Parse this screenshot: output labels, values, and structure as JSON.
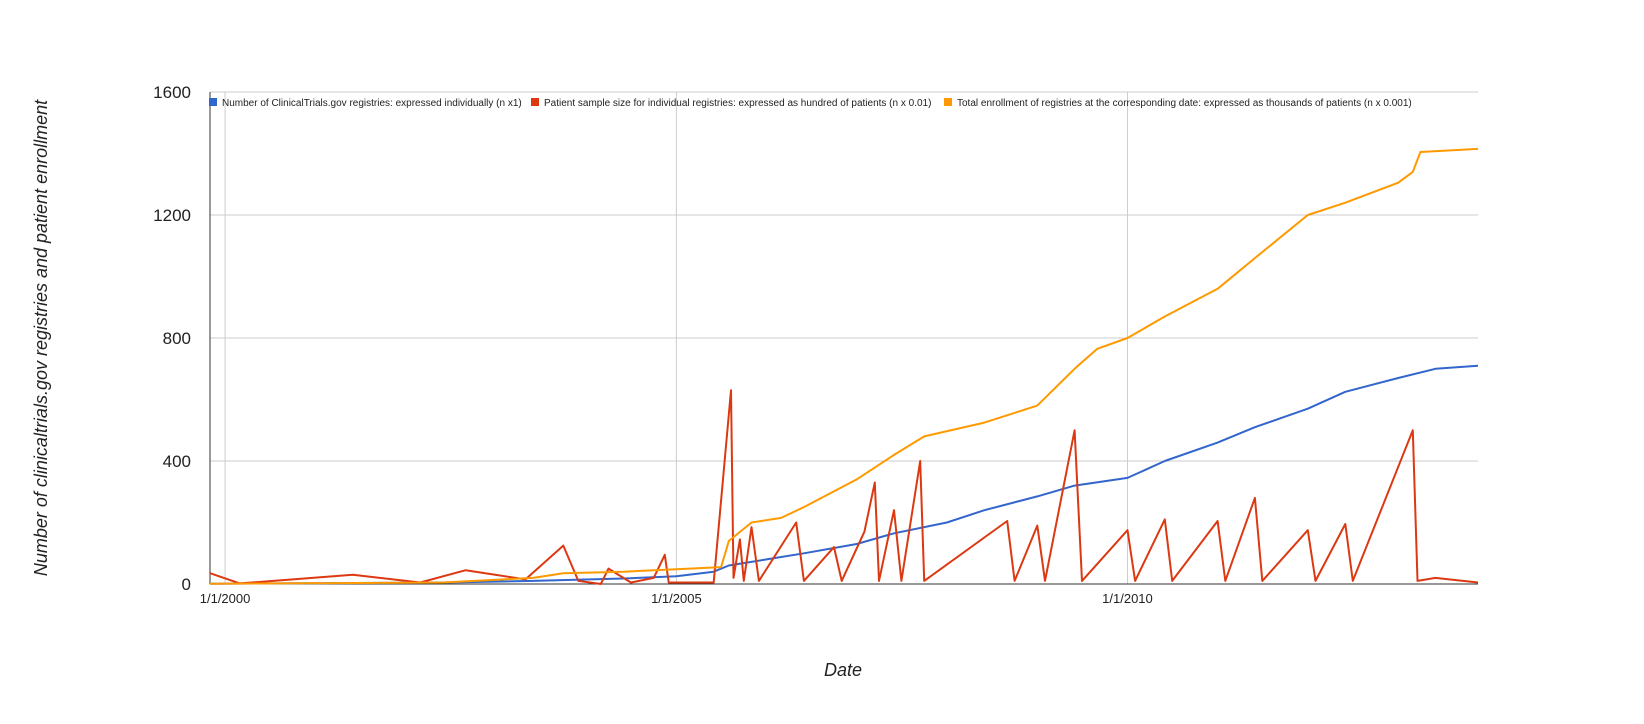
{
  "chart_data": {
    "type": "line",
    "title": "",
    "xlabel": "Date",
    "ylabel": "Number of clinicaltrials.gov registries and patient enrollment",
    "ylim": [
      0,
      1600
    ],
    "xlim": [
      "1999-11-01",
      "2013-11-20"
    ],
    "y_ticks": [
      "0",
      "400",
      "800",
      "1200",
      "1600"
    ],
    "x_ticks": [
      {
        "label": "1/1/2000",
        "date": "2000-01-01"
      },
      {
        "label": "1/1/2005",
        "date": "2005-01-01"
      },
      {
        "label": "1/1/2010",
        "date": "2010-01-01"
      }
    ],
    "grid": true,
    "legend_position": "top",
    "series": [
      {
        "name": "Number of ClinicalTrials.gov registries: expressed individually (n x1)",
        "color": "#3366cc",
        "points": [
          [
            "1999-11-01",
            1
          ],
          [
            "2002-06-01",
            5
          ],
          [
            "2003-06-01",
            10
          ],
          [
            "2004-06-01",
            18
          ],
          [
            "2005-01-01",
            25
          ],
          [
            "2005-06-01",
            40
          ],
          [
            "2005-08-01",
            60
          ],
          [
            "2006-01-01",
            80
          ],
          [
            "2006-06-01",
            100
          ],
          [
            "2007-01-01",
            130
          ],
          [
            "2007-06-01",
            165
          ],
          [
            "2008-01-01",
            200
          ],
          [
            "2008-06-01",
            240
          ],
          [
            "2009-01-01",
            285
          ],
          [
            "2009-06-01",
            320
          ],
          [
            "2010-01-01",
            345
          ],
          [
            "2010-06-01",
            400
          ],
          [
            "2011-01-01",
            460
          ],
          [
            "2011-06-01",
            510
          ],
          [
            "2012-01-01",
            570
          ],
          [
            "2012-06-01",
            625
          ],
          [
            "2013-01-01",
            670
          ],
          [
            "2013-06-01",
            700
          ],
          [
            "2013-11-20",
            710
          ]
        ]
      },
      {
        "name": "Patient sample size for individual registries: expressed as hundred of patients (n x 0.01)",
        "color": "#dc3912",
        "points": [
          [
            "1999-11-01",
            35
          ],
          [
            "2000-03-01",
            2
          ],
          [
            "2001-06-01",
            30
          ],
          [
            "2002-03-01",
            5
          ],
          [
            "2002-09-01",
            45
          ],
          [
            "2003-05-01",
            15
          ],
          [
            "2003-10-01",
            125
          ],
          [
            "2003-12-01",
            10
          ],
          [
            "2004-03-01",
            0
          ],
          [
            "2004-04-01",
            50
          ],
          [
            "2004-07-01",
            5
          ],
          [
            "2004-10-01",
            20
          ],
          [
            "2004-11-15",
            95
          ],
          [
            "2004-12-01",
            5
          ],
          [
            "2005-06-01",
            5
          ],
          [
            "2005-08-10",
            630
          ],
          [
            "2005-08-20",
            20
          ],
          [
            "2005-09-15",
            145
          ],
          [
            "2005-10-01",
            10
          ],
          [
            "2005-11-01",
            185
          ],
          [
            "2005-12-01",
            10
          ],
          [
            "2006-05-01",
            200
          ],
          [
            "2006-06-01",
            10
          ],
          [
            "2006-10-01",
            120
          ],
          [
            "2006-11-01",
            10
          ],
          [
            "2007-02-01",
            170
          ],
          [
            "2007-03-15",
            330
          ],
          [
            "2007-04-01",
            10
          ],
          [
            "2007-06-01",
            240
          ],
          [
            "2007-07-01",
            10
          ],
          [
            "2007-09-15",
            400
          ],
          [
            "2007-10-01",
            10
          ],
          [
            "2008-09-01",
            205
          ],
          [
            "2008-10-01",
            10
          ],
          [
            "2009-01-01",
            190
          ],
          [
            "2009-02-01",
            10
          ],
          [
            "2009-06-01",
            500
          ],
          [
            "2009-07-01",
            10
          ],
          [
            "2010-01-01",
            175
          ],
          [
            "2010-02-01",
            10
          ],
          [
            "2010-06-01",
            210
          ],
          [
            "2010-07-01",
            10
          ],
          [
            "2011-01-01",
            205
          ],
          [
            "2011-02-01",
            10
          ],
          [
            "2011-06-01",
            280
          ],
          [
            "2011-07-01",
            10
          ],
          [
            "2012-01-01",
            175
          ],
          [
            "2012-02-01",
            10
          ],
          [
            "2012-06-01",
            195
          ],
          [
            "2012-07-01",
            10
          ],
          [
            "2013-03-01",
            500
          ],
          [
            "2013-03-20",
            10
          ],
          [
            "2013-06-01",
            20
          ],
          [
            "2013-11-20",
            5
          ]
        ]
      },
      {
        "name": "Total enrollment of registries at the corresponding date: expressed as thousands of patients (n x 0.001)",
        "color": "#ff9900",
        "points": [
          [
            "1999-11-01",
            1
          ],
          [
            "2002-06-01",
            5
          ],
          [
            "2003-06-01",
            20
          ],
          [
            "2003-10-01",
            35
          ],
          [
            "2004-06-01",
            40
          ],
          [
            "2005-01-01",
            48
          ],
          [
            "2005-07-01",
            55
          ],
          [
            "2005-08-01",
            140
          ],
          [
            "2005-11-01",
            200
          ],
          [
            "2006-03-01",
            215
          ],
          [
            "2006-06-01",
            250
          ],
          [
            "2007-01-01",
            340
          ],
          [
            "2007-06-01",
            420
          ],
          [
            "2007-10-01",
            480
          ],
          [
            "2008-06-01",
            525
          ],
          [
            "2009-01-01",
            580
          ],
          [
            "2009-06-01",
            700
          ],
          [
            "2009-09-01",
            765
          ],
          [
            "2010-01-01",
            800
          ],
          [
            "2010-06-01",
            870
          ],
          [
            "2011-01-01",
            960
          ],
          [
            "2011-06-01",
            1060
          ],
          [
            "2012-01-01",
            1200
          ],
          [
            "2012-06-01",
            1240
          ],
          [
            "2013-01-01",
            1305
          ],
          [
            "2013-03-01",
            1340
          ],
          [
            "2013-04-01",
            1405
          ],
          [
            "2013-11-20",
            1415
          ]
        ]
      }
    ]
  }
}
